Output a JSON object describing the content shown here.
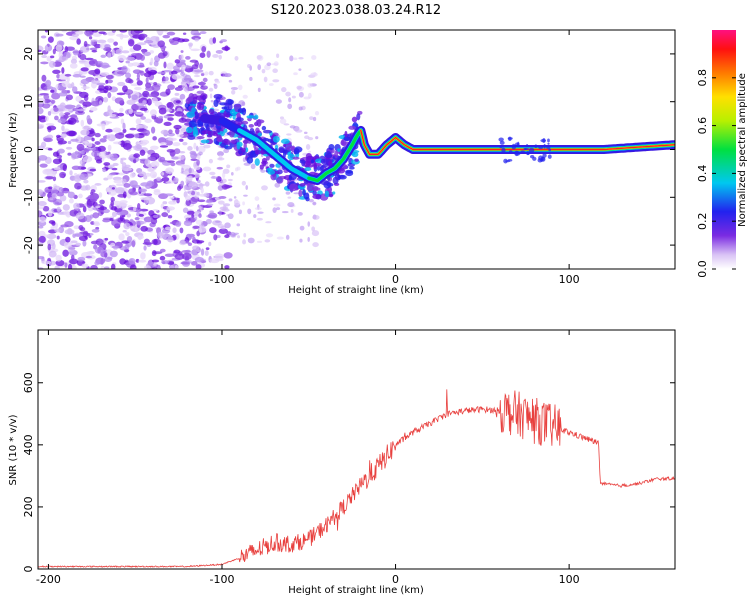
{
  "title": "S120.2023.038.03.24.R12",
  "chart_data": [
    {
      "type": "heatmap",
      "title": "S120.2023.038.03.24.R12",
      "xlabel": "Height of straight line (km)",
      "ylabel": "Frequency (Hz)",
      "xlim": [
        -206,
        161
      ],
      "ylim": [
        -25,
        25
      ],
      "xticks": [
        -200,
        -100,
        0,
        100
      ],
      "xtick_labels": [
        "-200",
        "-100",
        "0",
        "100"
      ],
      "yticks": [
        -20,
        -10,
        0,
        10,
        20
      ],
      "ytick_labels": [
        "-20",
        "-10",
        "0",
        "10",
        "20"
      ],
      "ridge": {
        "x": [
          -120,
          -100,
          -90,
          -80,
          -70,
          -60,
          -50,
          -45,
          -40,
          -35,
          -30,
          -25,
          -22,
          -20,
          -18,
          -15,
          -10,
          -5,
          0,
          5,
          10,
          20,
          40,
          60,
          80,
          100,
          120,
          140,
          161
        ],
        "y": [
          7,
          6,
          4,
          2,
          -1,
          -4,
          -6,
          -6.5,
          -5,
          -4,
          -2,
          1,
          3,
          4,
          1,
          -1,
          -1,
          1,
          2.5,
          1,
          0,
          0,
          0,
          0,
          0,
          0,
          0,
          0.5,
          1
        ]
      },
      "colorbar": {
        "label": "Normalized spectral amplitude",
        "range": [
          0,
          1
        ],
        "ticks": [
          0.0,
          0.2,
          0.4,
          0.6,
          0.8
        ],
        "tick_labels": [
          "0.0",
          "0.2",
          "0.4",
          "0.6",
          "0.8"
        ]
      }
    },
    {
      "type": "line",
      "xlabel": "Height of straight line (km)",
      "ylabel": "SNR (10 * v/v)",
      "xlim": [
        -206,
        161
      ],
      "ylim": [
        0,
        770
      ],
      "xticks": [
        -200,
        -100,
        0,
        100
      ],
      "xtick_labels": [
        "-200",
        "-100",
        "0",
        "100"
      ],
      "yticks": [
        0,
        200,
        400,
        600
      ],
      "ytick_labels": [
        "0",
        "200",
        "400",
        "600"
      ],
      "color": "#e8413f",
      "series": [
        {
          "name": "SNR",
          "x": [
            -206,
            -180,
            -150,
            -120,
            -100,
            -90,
            -80,
            -70,
            -60,
            -50,
            -40,
            -30,
            -20,
            -10,
            0,
            10,
            20,
            30,
            40,
            50,
            60,
            70,
            80,
            90,
            100,
            110,
            117,
            118,
            130,
            140,
            150,
            161
          ],
          "y": [
            8,
            8,
            8,
            8,
            15,
            35,
            60,
            85,
            80,
            95,
            140,
            200,
            270,
            330,
            400,
            440,
            470,
            500,
            510,
            515,
            510,
            500,
            480,
            460,
            440,
            420,
            405,
            275,
            268,
            275,
            290,
            292
          ]
        }
      ]
    }
  ]
}
